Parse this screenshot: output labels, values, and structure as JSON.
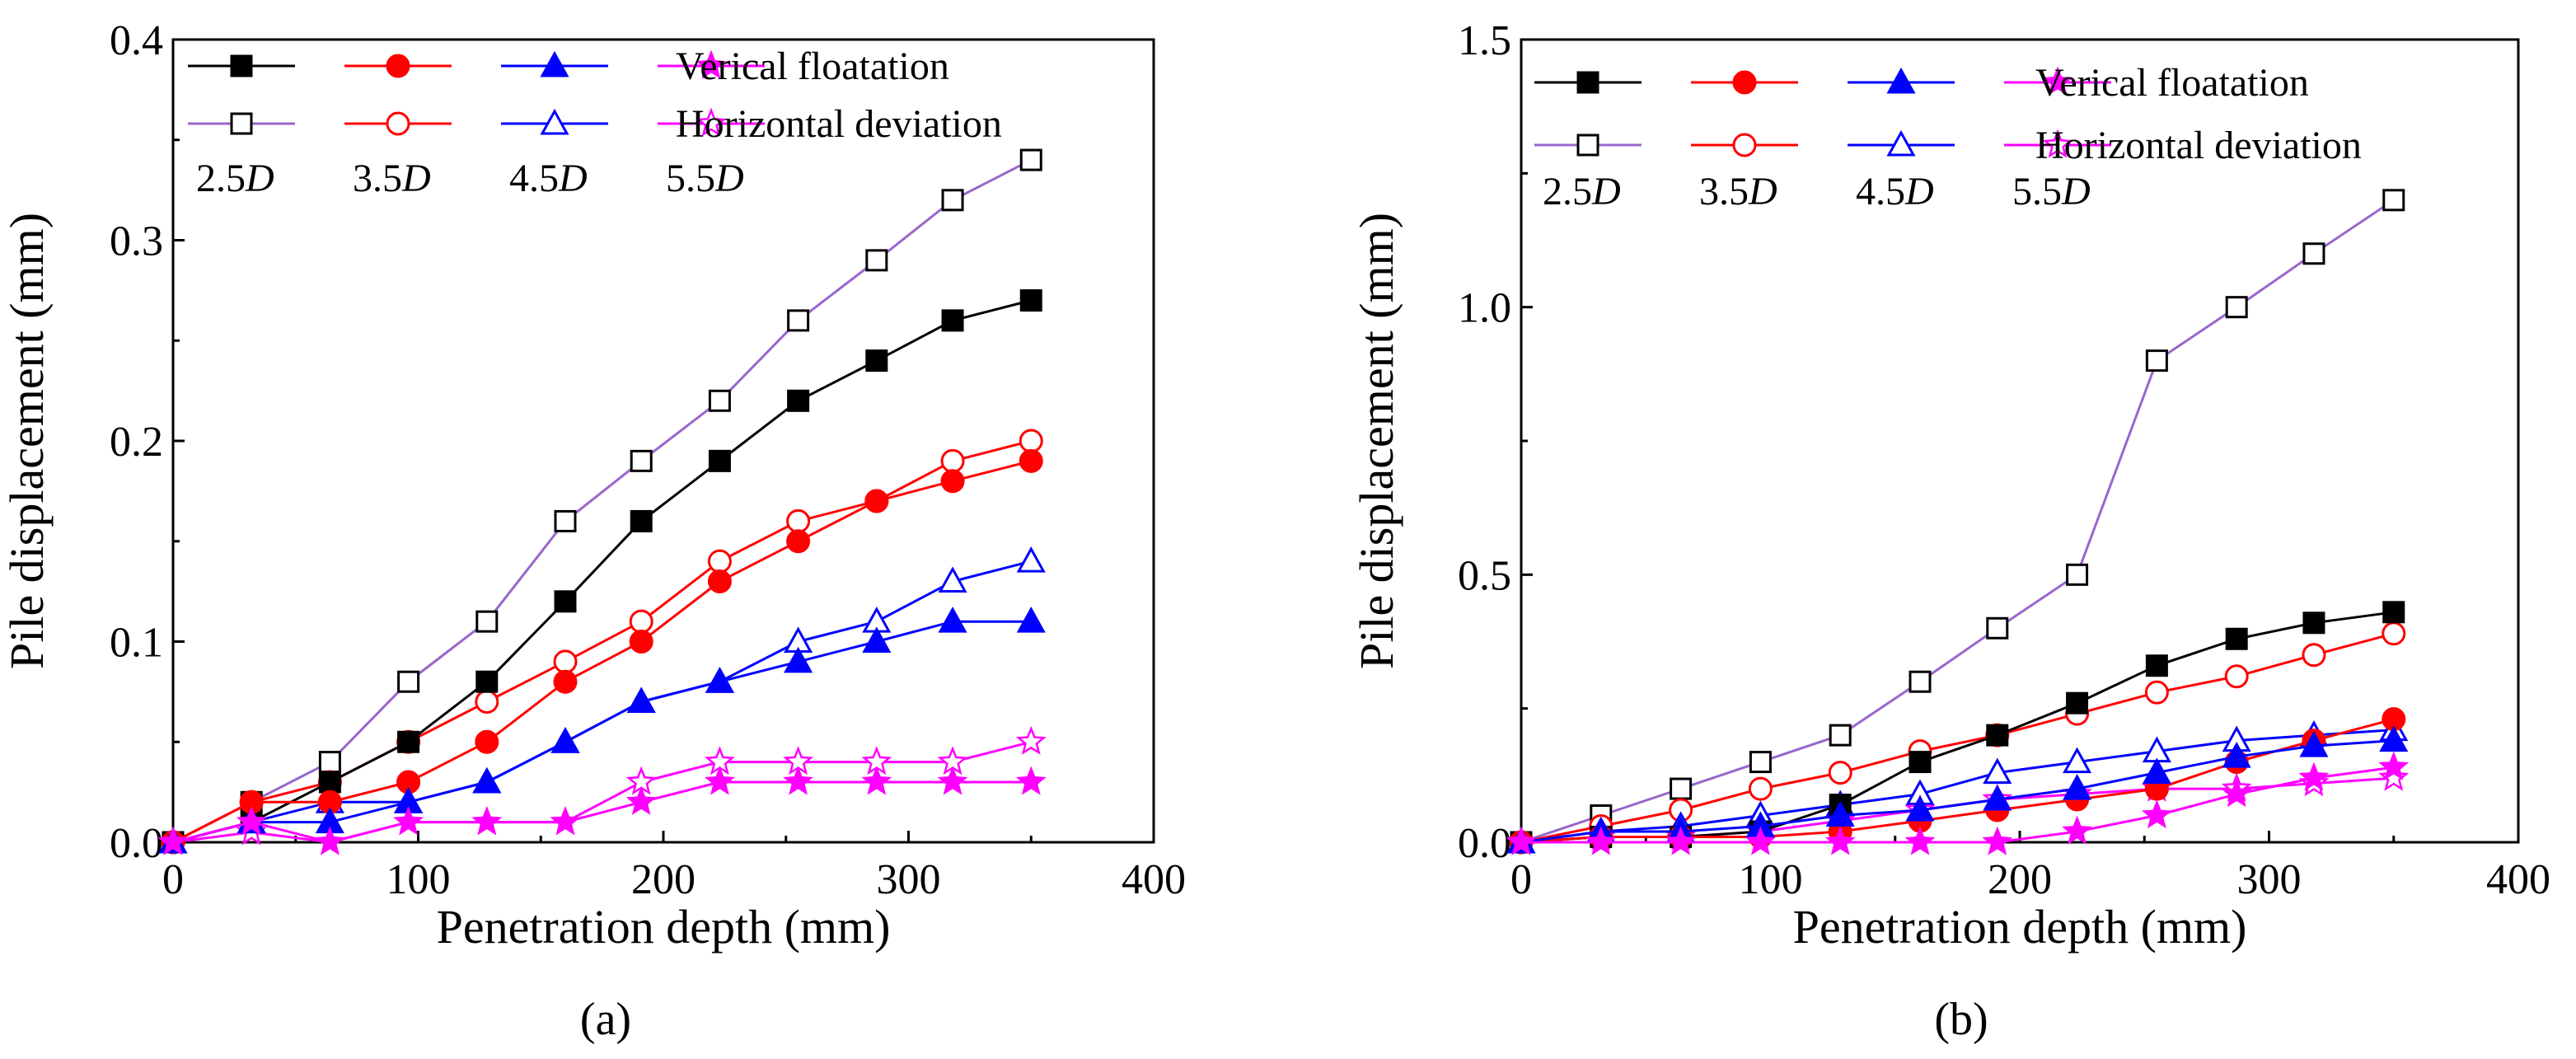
{
  "colors": {
    "2.5D": "#000000",
    "2.5D_open": "#9966cc",
    "3.5D": "#ff0000",
    "4.5D": "#0000ff",
    "5.5D": "#ff00ff"
  },
  "chart_data": [
    {
      "type": "line",
      "panel_label": "(a)",
      "panel_letter": "a",
      "xlabel": "Penetration depth (mm)",
      "ylabel": "Pile displacement (mm)",
      "xlim": [
        0,
        400
      ],
      "ylim": [
        0,
        0.4
      ],
      "xticks": [
        0,
        100,
        200,
        300,
        400
      ],
      "yticks": [
        0.0,
        0.1,
        0.2,
        0.3,
        0.4
      ],
      "xtick_labels": [
        "0",
        "100",
        "200",
        "300",
        "400"
      ],
      "ytick_labels": [
        "0.0",
        "0.1",
        "0.2",
        "0.3",
        "0.4"
      ],
      "legend": {
        "row_labels": [
          "Verical floatation",
          "Horizontal deviation"
        ],
        "group_labels": [
          {
            "num": "2.5",
            "d": "D"
          },
          {
            "num": "3.5",
            "d": "D"
          },
          {
            "num": "4.5",
            "d": "D"
          },
          {
            "num": "5.5",
            "d": "D"
          }
        ]
      },
      "x": [
        0,
        32,
        64,
        96,
        128,
        160,
        191,
        223,
        255,
        287,
        318,
        350
      ],
      "series": [
        {
          "name": "2.5D Verical floatation",
          "group": "2.5D",
          "kind": "vertical",
          "marker": "square",
          "filled": true,
          "color": "#000000",
          "values": [
            0,
            0.01,
            0.03,
            0.05,
            0.08,
            0.12,
            0.16,
            0.19,
            0.22,
            0.24,
            0.26,
            0.27
          ]
        },
        {
          "name": "3.5D Verical floatation",
          "group": "3.5D",
          "kind": "vertical",
          "marker": "circle",
          "filled": true,
          "color": "#ff0000",
          "values": [
            0,
            0.02,
            0.02,
            0.03,
            0.05,
            0.08,
            0.1,
            0.13,
            0.15,
            0.17,
            0.18,
            0.19
          ]
        },
        {
          "name": "4.5D Verical floatation",
          "group": "4.5D",
          "kind": "vertical",
          "marker": "triangle",
          "filled": true,
          "color": "#0000ff",
          "values": [
            0,
            0.01,
            0.01,
            0.02,
            0.03,
            0.05,
            0.07,
            0.08,
            0.09,
            0.1,
            0.11,
            0.11
          ]
        },
        {
          "name": "5.5D Verical floatation",
          "group": "5.5D",
          "kind": "vertical",
          "marker": "star",
          "filled": true,
          "color": "#ff00ff",
          "values": [
            0,
            0.01,
            0.0,
            0.01,
            0.01,
            0.01,
            0.02,
            0.03,
            0.03,
            0.03,
            0.03,
            0.03
          ]
        },
        {
          "name": "2.5D Horizontal deviation",
          "group": "2.5D",
          "kind": "horizontal",
          "marker": "square",
          "filled": false,
          "color": "#9966cc",
          "values": [
            0,
            0.02,
            0.04,
            0.08,
            0.11,
            0.16,
            0.19,
            0.22,
            0.26,
            0.29,
            0.32,
            0.34
          ]
        },
        {
          "name": "3.5D Horizontal deviation",
          "group": "3.5D",
          "kind": "horizontal",
          "marker": "circle",
          "filled": false,
          "color": "#ff0000",
          "values": [
            0,
            0.02,
            0.03,
            0.05,
            0.07,
            0.09,
            0.11,
            0.14,
            0.16,
            0.17,
            0.19,
            0.2
          ]
        },
        {
          "name": "4.5D Horizontal deviation",
          "group": "4.5D",
          "kind": "horizontal",
          "marker": "triangle",
          "filled": false,
          "color": "#0000ff",
          "values": [
            0,
            0.01,
            0.02,
            0.02,
            0.03,
            0.05,
            0.07,
            0.08,
            0.1,
            0.11,
            0.13,
            0.14
          ]
        },
        {
          "name": "5.5D Horizontal deviation",
          "group": "5.5D",
          "kind": "horizontal",
          "marker": "star",
          "filled": false,
          "color": "#ff00ff",
          "values": [
            0,
            0.005,
            0.0,
            0.01,
            0.01,
            0.01,
            0.03,
            0.04,
            0.04,
            0.04,
            0.04,
            0.05
          ]
        }
      ]
    },
    {
      "type": "line",
      "panel_label": "(b)",
      "panel_letter": "b",
      "xlabel": "Penetration depth (mm)",
      "ylabel": "Pile displacement (mm)",
      "xlim": [
        0,
        400
      ],
      "ylim": [
        0,
        1.5
      ],
      "xticks": [
        0,
        100,
        200,
        300,
        400
      ],
      "yticks": [
        0.0,
        0.5,
        1.0,
        1.5
      ],
      "xtick_labels": [
        "0",
        "100",
        "200",
        "300",
        "400"
      ],
      "ytick_labels": [
        "0.0",
        "0.5",
        "1.0",
        "1.5"
      ],
      "legend": {
        "row_labels": [
          "Verical floatation",
          "Horizontal deviation"
        ],
        "group_labels": [
          {
            "num": "2.5",
            "d": "D"
          },
          {
            "num": "3.5",
            "d": "D"
          },
          {
            "num": "4.5",
            "d": "D"
          },
          {
            "num": "5.5",
            "d": "D"
          }
        ]
      },
      "x": [
        0,
        32,
        64,
        96,
        128,
        160,
        191,
        223,
        255,
        287,
        318,
        350
      ],
      "series": [
        {
          "name": "2.5D Verical floatation",
          "group": "2.5D",
          "kind": "vertical",
          "marker": "square",
          "filled": true,
          "color": "#000000",
          "values": [
            0,
            0.01,
            0.01,
            0.02,
            0.07,
            0.15,
            0.2,
            0.26,
            0.33,
            0.38,
            0.41,
            0.43
          ]
        },
        {
          "name": "3.5D Verical floatation",
          "group": "3.5D",
          "kind": "vertical",
          "marker": "circle",
          "filled": true,
          "color": "#ff0000",
          "values": [
            0,
            0.01,
            0.01,
            0.01,
            0.02,
            0.04,
            0.06,
            0.08,
            0.1,
            0.15,
            0.19,
            0.23
          ]
        },
        {
          "name": "4.5D Verical floatation",
          "group": "4.5D",
          "kind": "vertical",
          "marker": "triangle",
          "filled": true,
          "color": "#0000ff",
          "values": [
            0,
            0.02,
            0.02,
            0.03,
            0.05,
            0.06,
            0.08,
            0.1,
            0.13,
            0.16,
            0.18,
            0.19
          ]
        },
        {
          "name": "5.5D Verical floatation",
          "group": "5.5D",
          "kind": "vertical",
          "marker": "star",
          "filled": true,
          "color": "#ff00ff",
          "values": [
            0,
            0.0,
            0.0,
            0.0,
            0.0,
            0.0,
            0.0,
            0.02,
            0.05,
            0.09,
            0.12,
            0.14
          ]
        },
        {
          "name": "2.5D Horizontal deviation",
          "group": "2.5D",
          "kind": "horizontal",
          "marker": "square",
          "filled": false,
          "color": "#9966cc",
          "values": [
            0,
            0.05,
            0.1,
            0.15,
            0.2,
            0.3,
            0.4,
            0.5,
            0.9,
            1.0,
            1.1,
            1.2
          ]
        },
        {
          "name": "3.5D Horizontal deviation",
          "group": "3.5D",
          "kind": "horizontal",
          "marker": "circle",
          "filled": false,
          "color": "#ff0000",
          "values": [
            0,
            0.03,
            0.06,
            0.1,
            0.13,
            0.17,
            0.2,
            0.24,
            0.28,
            0.31,
            0.35,
            0.39
          ]
        },
        {
          "name": "4.5D Horizontal deviation",
          "group": "4.5D",
          "kind": "horizontal",
          "marker": "triangle",
          "filled": false,
          "color": "#0000ff",
          "values": [
            0,
            0.02,
            0.03,
            0.05,
            0.07,
            0.09,
            0.13,
            0.15,
            0.17,
            0.19,
            0.2,
            0.21
          ]
        },
        {
          "name": "5.5D Horizontal deviation",
          "group": "5.5D",
          "kind": "horizontal",
          "marker": "star",
          "filled": false,
          "color": "#ff00ff",
          "values": [
            0,
            0.01,
            0.01,
            0.02,
            0.04,
            0.06,
            0.08,
            0.09,
            0.1,
            0.1,
            0.11,
            0.12
          ]
        }
      ]
    }
  ]
}
